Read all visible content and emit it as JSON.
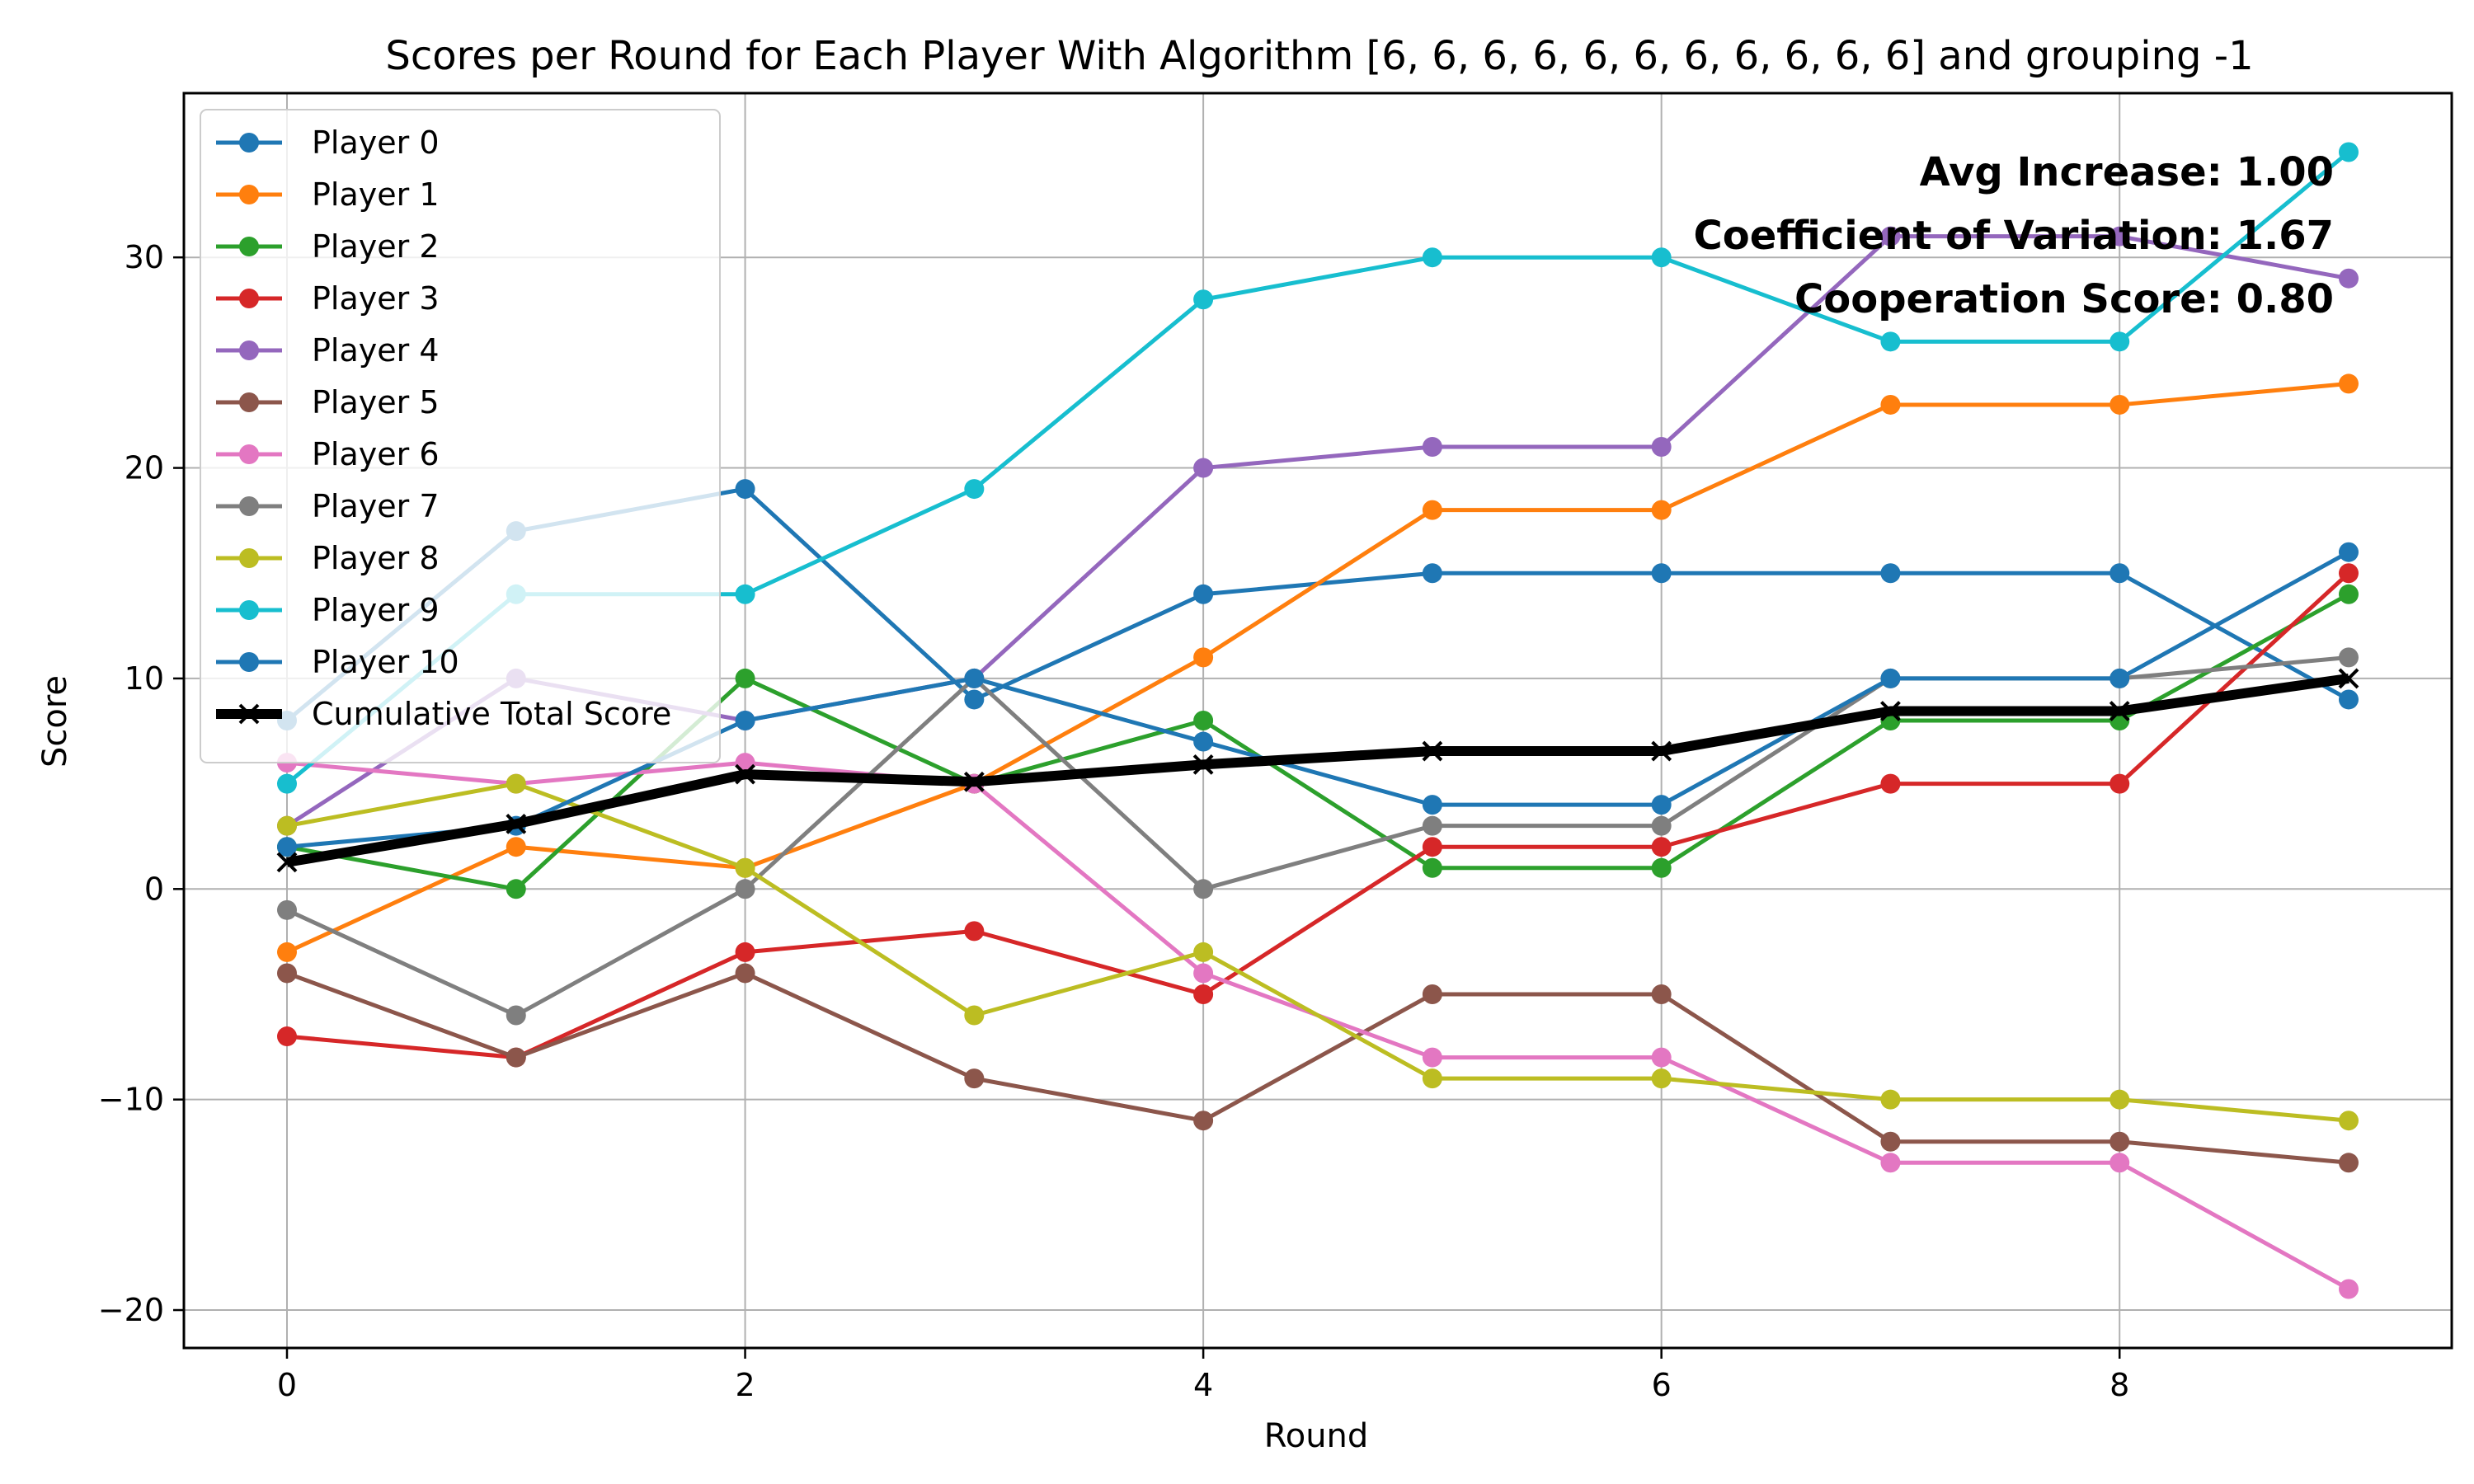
{
  "chart_data": {
    "type": "line",
    "title": "Scores per Round for Each Player With Algorithm [6, 6, 6, 6, 6, 6, 6, 6, 6, 6, 6] and grouping -1",
    "xlabel": "Round",
    "ylabel": "Score",
    "xlim": [
      -0.45,
      9.45
    ],
    "ylim": [
      -21.8,
      37.8
    ],
    "xticks": [
      0,
      2,
      4,
      6,
      8
    ],
    "yticks": [
      -20,
      -10,
      0,
      10,
      20,
      30
    ],
    "grid": true,
    "legend_position": "upper-left",
    "x": [
      0,
      1,
      2,
      3,
      4,
      5,
      6,
      7,
      8,
      9
    ],
    "series": [
      {
        "name": "Player 0",
        "color": "#1f77b4",
        "values": [
          8,
          17,
          19,
          9,
          14,
          15,
          15,
          15,
          15,
          9
        ]
      },
      {
        "name": "Player 1",
        "color": "#ff7f0e",
        "values": [
          -3,
          2,
          1,
          5,
          11,
          18,
          18,
          23,
          23,
          24
        ]
      },
      {
        "name": "Player 2",
        "color": "#2ca02c",
        "values": [
          2,
          0,
          10,
          5,
          8,
          1,
          1,
          8,
          8,
          14
        ]
      },
      {
        "name": "Player 3",
        "color": "#d62728",
        "values": [
          -7,
          -8,
          -3,
          -2,
          -5,
          2,
          2,
          5,
          5,
          15
        ]
      },
      {
        "name": "Player 4",
        "color": "#9467bd",
        "values": [
          3,
          10,
          8,
          10,
          20,
          21,
          21,
          31,
          31,
          29
        ]
      },
      {
        "name": "Player 5",
        "color": "#8c564b",
        "values": [
          -4,
          -8,
          -4,
          -9,
          -11,
          -5,
          -5,
          -12,
          -12,
          -13
        ]
      },
      {
        "name": "Player 6",
        "color": "#e377c2",
        "values": [
          6,
          5,
          6,
          5,
          -4,
          -8,
          -8,
          -13,
          -13,
          -19
        ]
      },
      {
        "name": "Player 7",
        "color": "#7f7f7f",
        "values": [
          -1,
          -6,
          0,
          10,
          0,
          3,
          3,
          10,
          10,
          11
        ]
      },
      {
        "name": "Player 8",
        "color": "#bcbd22",
        "values": [
          3,
          5,
          1,
          -6,
          -3,
          -9,
          -9,
          -10,
          -10,
          -11
        ]
      },
      {
        "name": "Player 9",
        "color": "#17becf",
        "values": [
          5,
          14,
          14,
          19,
          28,
          30,
          30,
          26,
          26,
          35
        ]
      },
      {
        "name": "Player 10",
        "color": "#1f77b4",
        "values": [
          2,
          3,
          8,
          10,
          7,
          4,
          4,
          10,
          10,
          16
        ]
      }
    ],
    "cumulative": {
      "name": "Cumulative Total Score",
      "color": "#000000",
      "values": [
        1.27,
        3.09,
        5.45,
        5.09,
        5.91,
        6.55,
        6.55,
        8.45,
        8.45,
        10.0
      ]
    },
    "annotations": [
      "Avg Increase: 1.00",
      "Coefficient of Variation: 1.67",
      "Cooperation Score: 0.80"
    ]
  }
}
